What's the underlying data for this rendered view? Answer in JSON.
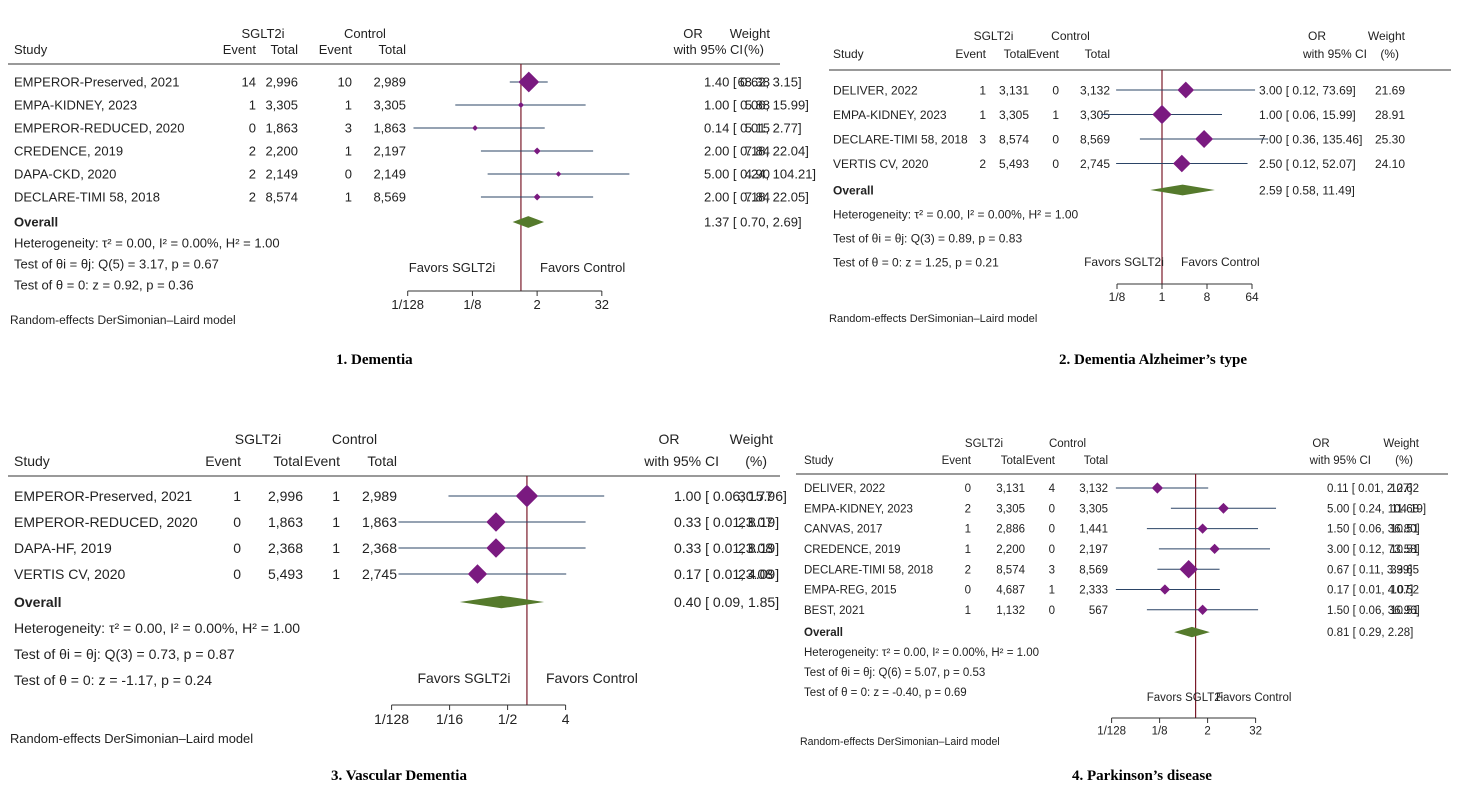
{
  "colors": {
    "ci_line": "#2b4466",
    "study_marker": "#7a1a80",
    "overall_diamond": "#557a2c",
    "null_line": "#7a1a2a",
    "favors_left": "#c0222a",
    "text": "#222222"
  },
  "headers": {
    "study": "Study",
    "sglt2i": "SGLT2i",
    "control": "Control",
    "event": "Event",
    "total": "Total",
    "or": "OR",
    "ci": "with 95% CI",
    "weight": "Weight",
    "weight_unit": "(%)"
  },
  "chart_data": [
    {
      "type": "forest",
      "caption": "1. Dementia",
      "xscale": "log2",
      "xlim": [
        -7.6,
        6.0
      ],
      "ticks": [
        {
          "value": -7,
          "label": "1/128"
        },
        {
          "value": -3,
          "label": "1/8"
        },
        {
          "value": 1,
          "label": "2"
        },
        {
          "value": 5,
          "label": "32"
        }
      ],
      "studies": [
        {
          "name": "EMPEROR-Preserved, 2021",
          "e1": "14",
          "n1": "2,996",
          "e2": "10",
          "n2": "2,989",
          "or": 1.4,
          "lo": 0.62,
          "hi": 3.15,
          "ci_text": "1.40 [ 0.62,      3.15]",
          "weight": "68.38"
        },
        {
          "name": "EMPA-KIDNEY, 2023",
          "e1": "1",
          "n1": "3,305",
          "e2": "1",
          "n2": "3,305",
          "or": 1.0,
          "lo": 0.06,
          "hi": 15.99,
          "ci_text": "1.00 [ 0.06,    15.99]",
          "weight": "5.88"
        },
        {
          "name": "EMPEROR-REDUCED, 2020",
          "e1": "0",
          "n1": "1,863",
          "e2": "3",
          "n2": "1,863",
          "or": 0.14,
          "lo": 0.01,
          "hi": 2.77,
          "ci_text": "0.14 [ 0.01,      2.77]",
          "weight": "5.15"
        },
        {
          "name": "CREDENCE, 2019",
          "e1": "2",
          "n1": "2,200",
          "e2": "1",
          "n2": "2,197",
          "or": 2.0,
          "lo": 0.18,
          "hi": 22.04,
          "ci_text": "2.00 [ 0.18,    22.04]",
          "weight": "7.84"
        },
        {
          "name": "DAPA-CKD, 2020",
          "e1": "2",
          "n1": "2,149",
          "e2": "0",
          "n2": "2,149",
          "or": 5.0,
          "lo": 0.24,
          "hi": 104.21,
          "ci_text": "5.00 [ 0.24,  104.21]",
          "weight": "4.90"
        },
        {
          "name": "DECLARE-TIMI 58, 2018",
          "e1": "2",
          "n1": "8,574",
          "e2": "1",
          "n2": "8,569",
          "or": 2.0,
          "lo": 0.18,
          "hi": 22.05,
          "ci_text": "2.00 [ 0.18,    22.05]",
          "weight": "7.84"
        }
      ],
      "overall": {
        "label": "Overall",
        "or": 1.37,
        "lo": 0.7,
        "hi": 2.69,
        "ci_text": "1.37 [ 0.70,      2.69]"
      },
      "stats": [
        "Heterogeneity: τ² = 0.00, I² = 0.00%, H² = 1.00",
        "Test of θi = θj: Q(5) = 3.17, p = 0.67",
        "Test of θ = 0: z = 0.92, p = 0.36"
      ],
      "favors_left": "Favors SGLT2i",
      "favors_right": "Favors Control",
      "model": "Random-effects DerSimonian–Laird model"
    },
    {
      "type": "forest",
      "caption": "2. Dementia Alzheimer’s type",
      "xscale": "log2",
      "xlim": [
        -4.2,
        7.4
      ],
      "ticks": [
        {
          "value": -3,
          "label": "1/8"
        },
        {
          "value": 0,
          "label": "1"
        },
        {
          "value": 3,
          "label": "8"
        },
        {
          "value": 6,
          "label": "64"
        }
      ],
      "studies": [
        {
          "name": "DELIVER, 2022",
          "e1": "1",
          "n1": "3,131",
          "e2": "0",
          "n2": "3,132",
          "or": 3.0,
          "lo": 0.12,
          "hi": 73.69,
          "ci_text": "3.00 [ 0.12,   73.69]",
          "weight": "21.69"
        },
        {
          "name": "EMPA-KIDNEY, 2023",
          "e1": "1",
          "n1": "3,305",
          "e2": "1",
          "n2": "3,305",
          "or": 1.0,
          "lo": 0.06,
          "hi": 15.99,
          "ci_text": "1.00 [ 0.06,   15.99]",
          "weight": "28.91"
        },
        {
          "name": "DECLARE-TIMI 58, 2018",
          "e1": "3",
          "n1": "8,574",
          "e2": "0",
          "n2": "8,569",
          "or": 7.0,
          "lo": 0.36,
          "hi": 135.46,
          "ci_text": "7.00 [ 0.36, 135.46]",
          "weight": "25.30"
        },
        {
          "name": "VERTIS CV, 2020",
          "e1": "2",
          "n1": "5,493",
          "e2": "0",
          "n2": "2,745",
          "or": 2.5,
          "lo": 0.12,
          "hi": 52.07,
          "ci_text": "2.50 [ 0.12,   52.07]",
          "weight": "24.10"
        }
      ],
      "overall": {
        "label": "Overall",
        "or": 2.59,
        "lo": 0.58,
        "hi": 11.49,
        "ci_text": "2.59 [ 0.58,   11.49]"
      },
      "stats": [
        "Heterogeneity: τ² = 0.00, I² = 0.00%, H² = 1.00",
        "Test of θi = θj: Q(3) = 0.89, p = 0.83",
        "Test of θ = 0: z = 1.25, p = 0.21"
      ],
      "favors_left": "Favors SGLT2i",
      "favors_right": "Favors Control",
      "model": "Random-effects DerSimonian–Laird model"
    },
    {
      "type": "forest",
      "caption": "3. Vascular Dementia",
      "xscale": "log2",
      "xlim": [
        -7.6,
        4.4
      ],
      "ticks": [
        {
          "value": -7,
          "label": "1/128"
        },
        {
          "value": -4,
          "label": "1/16"
        },
        {
          "value": -1,
          "label": "1/2"
        },
        {
          "value": 2,
          "label": "4"
        }
      ],
      "studies": [
        {
          "name": "EMPEROR-Preserved, 2021",
          "e1": "1",
          "n1": "2,996",
          "e2": "1",
          "n2": "2,989",
          "or": 1.0,
          "lo": 0.06,
          "hi": 15.96,
          "ci_text": "1.00 [ 0.06,   15.96]",
          "weight": "30.77"
        },
        {
          "name": "EMPEROR-REDUCED, 2020",
          "e1": "0",
          "n1": "1,863",
          "e2": "1",
          "n2": "1,863",
          "or": 0.33,
          "lo": 0.01,
          "hi": 8.19,
          "ci_text": "0.33 [ 0.01,     8.19]",
          "weight": "23.07"
        },
        {
          "name": "DAPA-HF, 2019",
          "e1": "0",
          "n1": "2,368",
          "e2": "1",
          "n2": "2,368",
          "or": 0.33,
          "lo": 0.01,
          "hi": 8.19,
          "ci_text": "0.33 [ 0.01,     8.19]",
          "weight": "23.08"
        },
        {
          "name": "VERTIS CV, 2020",
          "e1": "0",
          "n1": "5,493",
          "e2": "1",
          "n2": "2,745",
          "or": 0.17,
          "lo": 0.01,
          "hi": 4.09,
          "ci_text": "0.17 [ 0.01,     4.09]",
          "weight": "23.08"
        }
      ],
      "overall": {
        "label": "Overall",
        "or": 0.4,
        "lo": 0.09,
        "hi": 1.85,
        "ci_text": "0.40 [ 0.09,     1.85]"
      },
      "stats": [
        "Heterogeneity: τ² = 0.00, I² = 0.00%, H² = 1.00",
        "Test of θi = θj: Q(3) = 0.73, p = 0.87",
        "Test of θ = 0: z = -1.17, p = 0.24"
      ],
      "favors_left": "Favors SGLT2i",
      "favors_right": "Favors Control",
      "model": "Random-effects DerSimonian–Laird model"
    },
    {
      "type": "forest",
      "caption": "4. Parkinson’s disease",
      "xscale": "log2",
      "xlim": [
        -7.8,
        6.2
      ],
      "ticks": [
        {
          "value": -7,
          "label": "1/128"
        },
        {
          "value": -3,
          "label": "1/8"
        },
        {
          "value": 1,
          "label": "2"
        },
        {
          "value": 5,
          "label": "32"
        }
      ],
      "studies": [
        {
          "name": "DELIVER, 2022",
          "e1": "0",
          "n1": "3,131",
          "e2": "4",
          "n2": "3,132",
          "or": 0.11,
          "lo": 0.01,
          "hi": 2.07,
          "ci_text": "0.11 [ 0.01,      2.07]",
          "weight": "12.62"
        },
        {
          "name": "EMPA-KIDNEY, 2023",
          "e1": "2",
          "n1": "3,305",
          "e2": "0",
          "n2": "3,305",
          "or": 5.0,
          "lo": 0.24,
          "hi": 104.19,
          "ci_text": "5.00 [ 0.24,  104.19]",
          "weight": "11.68"
        },
        {
          "name": "CANVAS, 2017",
          "e1": "1",
          "n1": "2,886",
          "e2": "0",
          "n2": "1,441",
          "or": 1.5,
          "lo": 0.06,
          "hi": 36.8,
          "ci_text": "1.50 [ 0.06,    36.80]",
          "weight": "10.51"
        },
        {
          "name": "CREDENCE, 2019",
          "e1": "1",
          "n1": "2,200",
          "e2": "0",
          "n2": "2,197",
          "or": 3.0,
          "lo": 0.12,
          "hi": 73.58,
          "ci_text": "3.00 [ 0.12,    73.58]",
          "weight": "10.51"
        },
        {
          "name": "DECLARE-TIMI 58, 2018",
          "e1": "2",
          "n1": "8,574",
          "e2": "3",
          "n2": "8,569",
          "or": 0.67,
          "lo": 0.11,
          "hi": 3.99,
          "ci_text": "0.67 [ 0.11,      3.99]",
          "weight": "33.65"
        },
        {
          "name": "EMPA-REG, 2015",
          "e1": "0",
          "n1": "4,687",
          "e2": "1",
          "n2": "2,333",
          "or": 0.17,
          "lo": 0.01,
          "hi": 4.07,
          "ci_text": "0.17 [ 0.01,      4.07]",
          "weight": "10.52"
        },
        {
          "name": "BEST, 2021",
          "e1": "1",
          "n1": "1,132",
          "e2": "0",
          "n2": "567",
          "or": 1.5,
          "lo": 0.06,
          "hi": 36.96,
          "ci_text": "1.50 [ 0.06,    36.96]",
          "weight": "10.51"
        }
      ],
      "overall": {
        "label": "Overall",
        "or": 0.81,
        "lo": 0.29,
        "hi": 2.28,
        "ci_text": "0.81 [ 0.29,      2.28]"
      },
      "stats": [
        "Heterogeneity: τ² = 0.00, I² = 0.00%, H² = 1.00",
        "Test of θi = θj: Q(6) = 5.07, p = 0.53",
        "Test of θ = 0: z = -0.40, p = 0.69"
      ],
      "favors_left": "Favors SGLT2i",
      "favors_right": "Favors Control",
      "model": "Random-effects DerSimonian–Laird model"
    }
  ]
}
